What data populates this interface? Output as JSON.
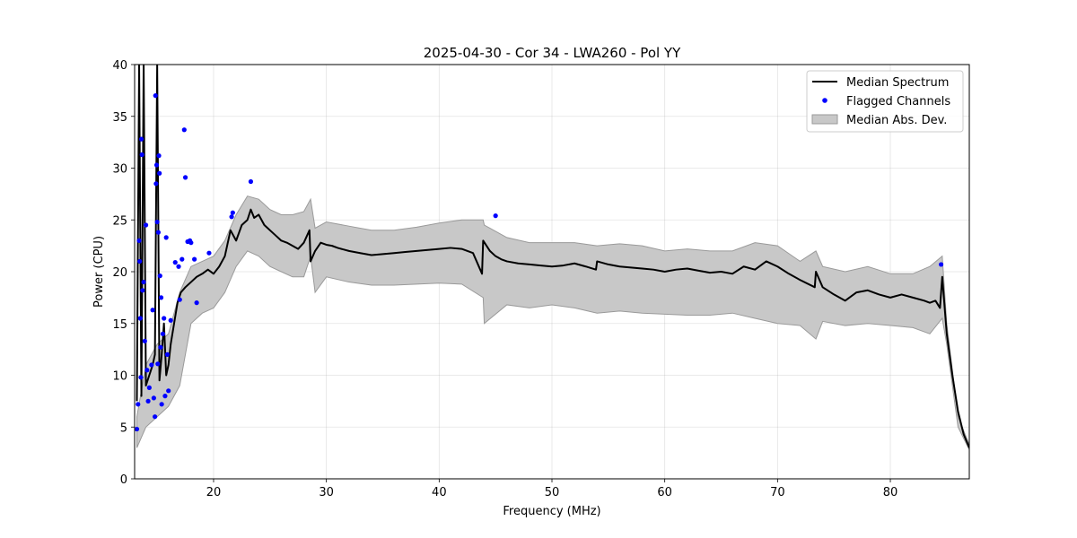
{
  "chart_data": {
    "type": "line",
    "title": "2025-04-30 - Cor 34 - LWA260 - Pol YY",
    "xlabel": "Frequency (MHz)",
    "ylabel": "Power (CPU)",
    "xlim": [
      13,
      87
    ],
    "ylim": [
      0,
      40
    ],
    "xticks": [
      20,
      30,
      40,
      50,
      60,
      70,
      80
    ],
    "yticks": [
      0,
      5,
      10,
      15,
      20,
      25,
      30,
      35,
      40
    ],
    "grid": true,
    "legend_position": "top-right",
    "colors": {
      "median": "#000000",
      "flagged": "#0000ff",
      "band": "#c8c8c8",
      "band_edge": "#9a9a9a"
    },
    "legend": [
      {
        "label": "Median Spectrum",
        "kind": "line"
      },
      {
        "label": "Flagged Channels",
        "kind": "marker"
      },
      {
        "label": "Median Abs. Dev.",
        "kind": "patch"
      }
    ],
    "series": [
      {
        "name": "Median Spectrum",
        "x": [
          13.2,
          13.4,
          13.6,
          13.8,
          14.0,
          14.3,
          14.6,
          14.8,
          15.0,
          15.2,
          15.4,
          15.6,
          15.8,
          16.0,
          16.2,
          16.5,
          16.8,
          17.1,
          17.5,
          18.0,
          18.5,
          19.0,
          19.5,
          20.0,
          20.5,
          21.0,
          21.5,
          22.0,
          22.5,
          23.0,
          23.3,
          23.6,
          24.0,
          24.5,
          25.0,
          25.5,
          26.0,
          26.5,
          27.0,
          27.5,
          28.0,
          28.5,
          28.6,
          29.0,
          29.5,
          30.0,
          30.5,
          31.0,
          32.0,
          33.0,
          34.0,
          35.0,
          36.0,
          37.0,
          38.0,
          39.0,
          40.0,
          41.0,
          42.0,
          43.0,
          43.8,
          43.9,
          44.5,
          45.0,
          45.5,
          46.0,
          47.0,
          48.0,
          49.0,
          50.0,
          51.0,
          52.0,
          53.0,
          53.9,
          54.0,
          55.0,
          56.0,
          57.0,
          58.0,
          59.0,
          60.0,
          61.0,
          62.0,
          63.0,
          64.0,
          65.0,
          66.0,
          67.0,
          68.0,
          69.0,
          70.0,
          71.0,
          72.0,
          73.3,
          73.4,
          74.0,
          75.0,
          76.0,
          77.0,
          78.0,
          79.0,
          80.0,
          81.0,
          82.0,
          83.0,
          83.5,
          84.0,
          84.4,
          84.6,
          85.0,
          85.5,
          86.0,
          86.5,
          87.0
        ],
        "y": [
          7.5,
          40,
          8,
          40,
          9,
          10,
          11,
          12,
          40,
          9.5,
          12,
          15,
          10,
          11,
          13,
          15,
          17,
          18,
          18.5,
          19,
          19.5,
          19.8,
          20.2,
          19.8,
          20.5,
          21.5,
          24,
          23,
          24.5,
          25,
          26,
          25.2,
          25.5,
          24.5,
          24,
          23.5,
          23,
          22.8,
          22.5,
          22.2,
          22.8,
          24,
          21,
          22,
          22.8,
          22.6,
          22.5,
          22.3,
          22,
          21.8,
          21.6,
          21.7,
          21.8,
          21.9,
          22,
          22.1,
          22.2,
          22.3,
          22.2,
          21.8,
          19.8,
          23,
          22,
          21.5,
          21.2,
          21,
          20.8,
          20.7,
          20.6,
          20.5,
          20.6,
          20.8,
          20.5,
          20.2,
          21,
          20.7,
          20.5,
          20.4,
          20.3,
          20.2,
          20,
          20.2,
          20.3,
          20.1,
          19.9,
          20,
          19.8,
          20.5,
          20.2,
          21,
          20.5,
          19.8,
          19.2,
          18.5,
          20,
          18.5,
          17.8,
          17.2,
          18,
          18.2,
          17.8,
          17.5,
          17.8,
          17.5,
          17.2,
          17,
          17.2,
          16.5,
          19.5,
          14,
          10,
          6.5,
          4.3,
          3.0
        ]
      },
      {
        "name": "Median Abs. Dev.",
        "x": [
          13.2,
          14.0,
          15.0,
          16.0,
          17.0,
          18.0,
          19.0,
          20.0,
          21.0,
          22.0,
          23.0,
          24.0,
          25.0,
          26.0,
          27.0,
          28.0,
          28.6,
          29.0,
          30.0,
          32.0,
          34.0,
          36.0,
          38.0,
          40.0,
          42.0,
          43.9,
          44.0,
          46.0,
          48.0,
          50.0,
          52.0,
          54.0,
          56.0,
          58.0,
          60.0,
          62.0,
          64.0,
          66.0,
          68.0,
          70.0,
          72.0,
          73.4,
          74.0,
          76.0,
          78.0,
          80.0,
          82.0,
          83.5,
          84.6,
          85.0,
          86.0,
          87.0
        ],
        "upper": [
          6,
          11,
          13,
          14,
          18,
          20.5,
          21,
          21.5,
          23,
          25.5,
          27.3,
          27,
          26,
          25.5,
          25.5,
          25.8,
          27,
          24.2,
          24.8,
          24.4,
          24,
          24,
          24.3,
          24.7,
          25,
          25,
          24.5,
          23.3,
          22.8,
          22.8,
          22.8,
          22.5,
          22.7,
          22.5,
          22,
          22.2,
          22,
          22,
          22.8,
          22.5,
          21,
          22,
          20.5,
          20,
          20.5,
          19.8,
          19.8,
          20.5,
          21.5,
          15,
          6,
          3.3
        ],
        "lower": [
          3,
          5,
          6,
          7,
          9,
          15,
          16,
          16.5,
          18,
          20.5,
          22,
          21.5,
          20.5,
          20,
          19.5,
          19.5,
          21.5,
          18,
          19.5,
          19,
          18.7,
          18.7,
          18.8,
          18.9,
          18.8,
          17.5,
          15,
          16.8,
          16.5,
          16.8,
          16.5,
          16,
          16.2,
          16,
          15.9,
          15.8,
          15.8,
          16,
          15.5,
          15,
          14.8,
          13.5,
          15.2,
          14.8,
          15,
          14.8,
          14.6,
          14,
          15.5,
          13,
          5,
          2.8
        ]
      },
      {
        "name": "Flagged Channels",
        "x": [
          13.2,
          13.3,
          13.4,
          13.45,
          13.5,
          13.55,
          13.6,
          13.65,
          13.7,
          13.8,
          13.9,
          14.0,
          14.1,
          14.2,
          14.3,
          14.5,
          14.6,
          14.7,
          14.8,
          14.85,
          14.9,
          14.95,
          15.0,
          15.05,
          15.1,
          15.15,
          15.2,
          15.25,
          15.3,
          15.35,
          15.4,
          15.5,
          15.6,
          15.7,
          15.8,
          15.9,
          16.0,
          16.2,
          16.6,
          16.9,
          17.0,
          17.2,
          17.4,
          17.5,
          17.7,
          17.9,
          18.0,
          18.3,
          18.5,
          19.6,
          21.6,
          21.7,
          23.3,
          45.0,
          84.5
        ],
        "y": [
          4.8,
          7.2,
          23,
          21,
          15.5,
          9.8,
          32.8,
          31.3,
          18.2,
          19,
          13.3,
          24.5,
          10.5,
          7.5,
          8.8,
          11,
          16.3,
          7.8,
          6,
          37,
          28.5,
          30.3,
          24.8,
          11.1,
          23.8,
          31.2,
          29.5,
          19.6,
          12.7,
          17.5,
          7.2,
          14,
          15.5,
          8,
          23.3,
          12,
          8.5,
          15.3,
          20.9,
          20.5,
          17.3,
          21.2,
          33.7,
          29.1,
          22.9,
          23,
          22.8,
          21.2,
          17,
          21.8,
          25.3,
          25.7,
          28.7,
          25.4,
          20.7
        ]
      }
    ]
  }
}
